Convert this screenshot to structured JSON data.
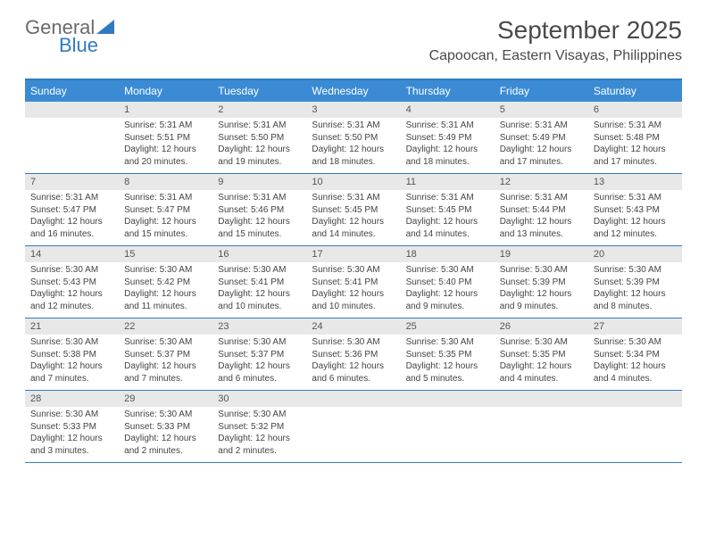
{
  "logo": {
    "text_general": "General",
    "text_blue": "Blue"
  },
  "title": "September 2025",
  "location": "Capoocan, Eastern Visayas, Philippines",
  "colors": {
    "header_bg": "#3b8bd4",
    "accent": "#2f7bbf",
    "daynum_bg": "#e8e8e8",
    "text": "#4a4a4a",
    "logo_gray": "#6a6a6a",
    "logo_blue": "#2f7bbf"
  },
  "typography": {
    "title_fontsize": 28,
    "location_fontsize": 16,
    "dayheader_fontsize": 12,
    "daynum_fontsize": 11,
    "body_fontsize": 10
  },
  "day_headers": [
    "Sunday",
    "Monday",
    "Tuesday",
    "Wednesday",
    "Thursday",
    "Friday",
    "Saturday"
  ],
  "weeks": [
    [
      {
        "num": "",
        "sunrise": "",
        "sunset": "",
        "daylight": ""
      },
      {
        "num": "1",
        "sunrise": "Sunrise: 5:31 AM",
        "sunset": "Sunset: 5:51 PM",
        "daylight": "Daylight: 12 hours and 20 minutes."
      },
      {
        "num": "2",
        "sunrise": "Sunrise: 5:31 AM",
        "sunset": "Sunset: 5:50 PM",
        "daylight": "Daylight: 12 hours and 19 minutes."
      },
      {
        "num": "3",
        "sunrise": "Sunrise: 5:31 AM",
        "sunset": "Sunset: 5:50 PM",
        "daylight": "Daylight: 12 hours and 18 minutes."
      },
      {
        "num": "4",
        "sunrise": "Sunrise: 5:31 AM",
        "sunset": "Sunset: 5:49 PM",
        "daylight": "Daylight: 12 hours and 18 minutes."
      },
      {
        "num": "5",
        "sunrise": "Sunrise: 5:31 AM",
        "sunset": "Sunset: 5:49 PM",
        "daylight": "Daylight: 12 hours and 17 minutes."
      },
      {
        "num": "6",
        "sunrise": "Sunrise: 5:31 AM",
        "sunset": "Sunset: 5:48 PM",
        "daylight": "Daylight: 12 hours and 17 minutes."
      }
    ],
    [
      {
        "num": "7",
        "sunrise": "Sunrise: 5:31 AM",
        "sunset": "Sunset: 5:47 PM",
        "daylight": "Daylight: 12 hours and 16 minutes."
      },
      {
        "num": "8",
        "sunrise": "Sunrise: 5:31 AM",
        "sunset": "Sunset: 5:47 PM",
        "daylight": "Daylight: 12 hours and 15 minutes."
      },
      {
        "num": "9",
        "sunrise": "Sunrise: 5:31 AM",
        "sunset": "Sunset: 5:46 PM",
        "daylight": "Daylight: 12 hours and 15 minutes."
      },
      {
        "num": "10",
        "sunrise": "Sunrise: 5:31 AM",
        "sunset": "Sunset: 5:45 PM",
        "daylight": "Daylight: 12 hours and 14 minutes."
      },
      {
        "num": "11",
        "sunrise": "Sunrise: 5:31 AM",
        "sunset": "Sunset: 5:45 PM",
        "daylight": "Daylight: 12 hours and 14 minutes."
      },
      {
        "num": "12",
        "sunrise": "Sunrise: 5:31 AM",
        "sunset": "Sunset: 5:44 PM",
        "daylight": "Daylight: 12 hours and 13 minutes."
      },
      {
        "num": "13",
        "sunrise": "Sunrise: 5:31 AM",
        "sunset": "Sunset: 5:43 PM",
        "daylight": "Daylight: 12 hours and 12 minutes."
      }
    ],
    [
      {
        "num": "14",
        "sunrise": "Sunrise: 5:30 AM",
        "sunset": "Sunset: 5:43 PM",
        "daylight": "Daylight: 12 hours and 12 minutes."
      },
      {
        "num": "15",
        "sunrise": "Sunrise: 5:30 AM",
        "sunset": "Sunset: 5:42 PM",
        "daylight": "Daylight: 12 hours and 11 minutes."
      },
      {
        "num": "16",
        "sunrise": "Sunrise: 5:30 AM",
        "sunset": "Sunset: 5:41 PM",
        "daylight": "Daylight: 12 hours and 10 minutes."
      },
      {
        "num": "17",
        "sunrise": "Sunrise: 5:30 AM",
        "sunset": "Sunset: 5:41 PM",
        "daylight": "Daylight: 12 hours and 10 minutes."
      },
      {
        "num": "18",
        "sunrise": "Sunrise: 5:30 AM",
        "sunset": "Sunset: 5:40 PM",
        "daylight": "Daylight: 12 hours and 9 minutes."
      },
      {
        "num": "19",
        "sunrise": "Sunrise: 5:30 AM",
        "sunset": "Sunset: 5:39 PM",
        "daylight": "Daylight: 12 hours and 9 minutes."
      },
      {
        "num": "20",
        "sunrise": "Sunrise: 5:30 AM",
        "sunset": "Sunset: 5:39 PM",
        "daylight": "Daylight: 12 hours and 8 minutes."
      }
    ],
    [
      {
        "num": "21",
        "sunrise": "Sunrise: 5:30 AM",
        "sunset": "Sunset: 5:38 PM",
        "daylight": "Daylight: 12 hours and 7 minutes."
      },
      {
        "num": "22",
        "sunrise": "Sunrise: 5:30 AM",
        "sunset": "Sunset: 5:37 PM",
        "daylight": "Daylight: 12 hours and 7 minutes."
      },
      {
        "num": "23",
        "sunrise": "Sunrise: 5:30 AM",
        "sunset": "Sunset: 5:37 PM",
        "daylight": "Daylight: 12 hours and 6 minutes."
      },
      {
        "num": "24",
        "sunrise": "Sunrise: 5:30 AM",
        "sunset": "Sunset: 5:36 PM",
        "daylight": "Daylight: 12 hours and 6 minutes."
      },
      {
        "num": "25",
        "sunrise": "Sunrise: 5:30 AM",
        "sunset": "Sunset: 5:35 PM",
        "daylight": "Daylight: 12 hours and 5 minutes."
      },
      {
        "num": "26",
        "sunrise": "Sunrise: 5:30 AM",
        "sunset": "Sunset: 5:35 PM",
        "daylight": "Daylight: 12 hours and 4 minutes."
      },
      {
        "num": "27",
        "sunrise": "Sunrise: 5:30 AM",
        "sunset": "Sunset: 5:34 PM",
        "daylight": "Daylight: 12 hours and 4 minutes."
      }
    ],
    [
      {
        "num": "28",
        "sunrise": "Sunrise: 5:30 AM",
        "sunset": "Sunset: 5:33 PM",
        "daylight": "Daylight: 12 hours and 3 minutes."
      },
      {
        "num": "29",
        "sunrise": "Sunrise: 5:30 AM",
        "sunset": "Sunset: 5:33 PM",
        "daylight": "Daylight: 12 hours and 2 minutes."
      },
      {
        "num": "30",
        "sunrise": "Sunrise: 5:30 AM",
        "sunset": "Sunset: 5:32 PM",
        "daylight": "Daylight: 12 hours and 2 minutes."
      },
      {
        "num": "",
        "sunrise": "",
        "sunset": "",
        "daylight": ""
      },
      {
        "num": "",
        "sunrise": "",
        "sunset": "",
        "daylight": ""
      },
      {
        "num": "",
        "sunrise": "",
        "sunset": "",
        "daylight": ""
      },
      {
        "num": "",
        "sunrise": "",
        "sunset": "",
        "daylight": ""
      }
    ]
  ]
}
